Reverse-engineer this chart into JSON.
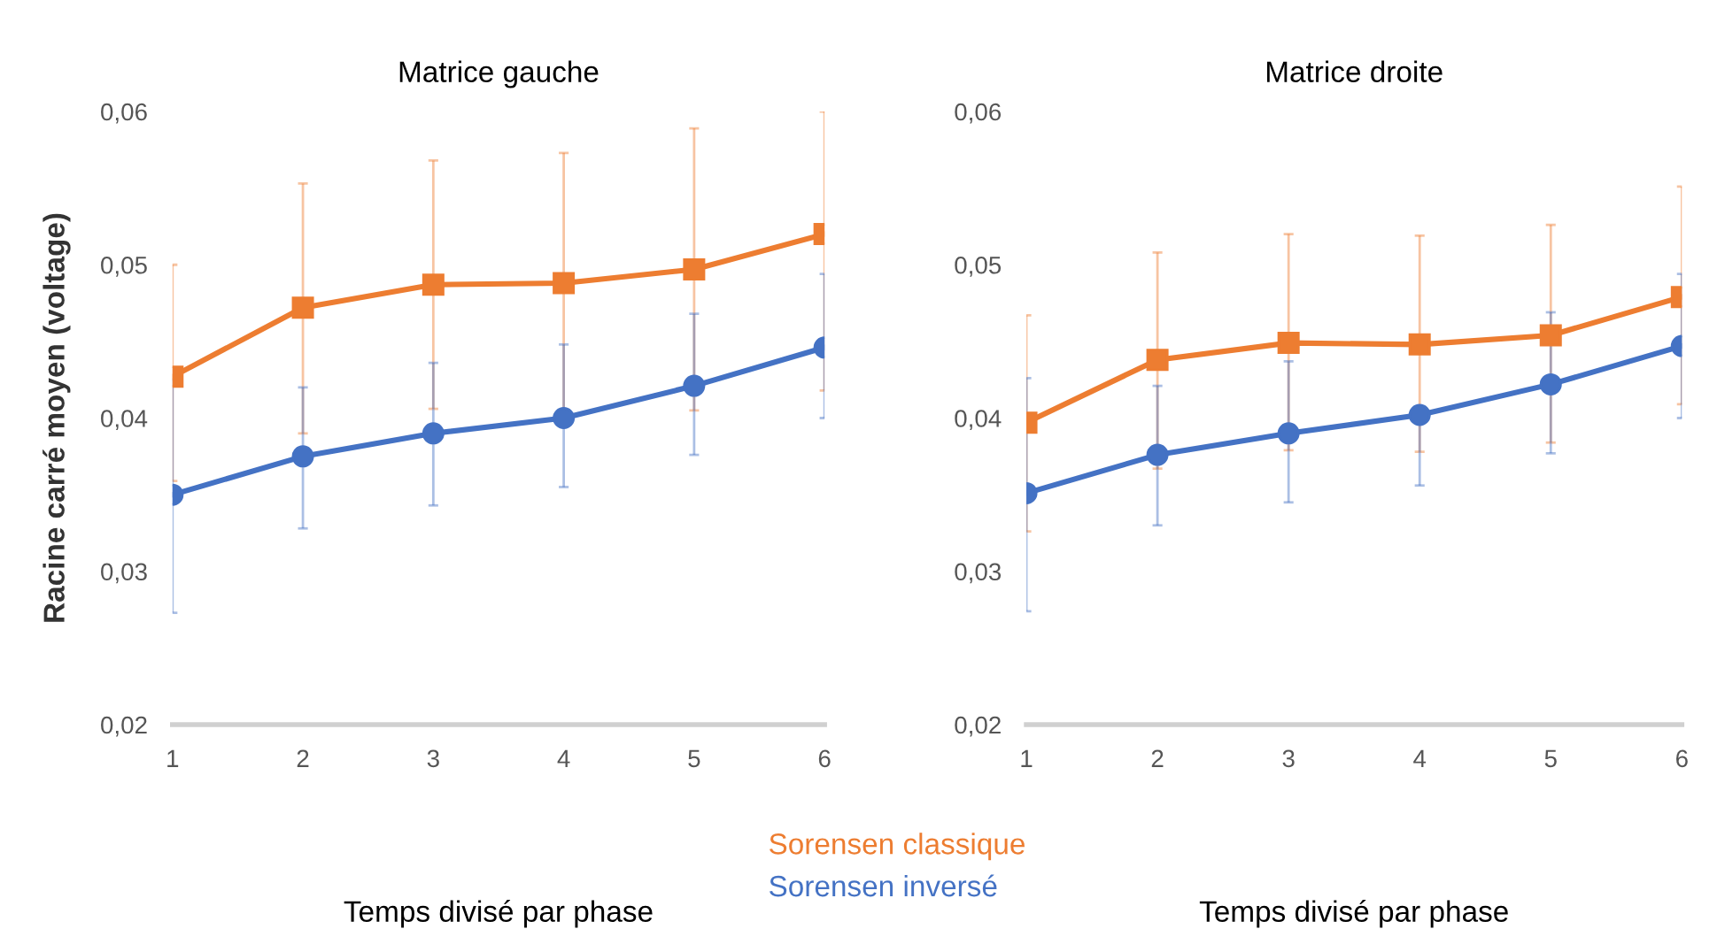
{
  "chart_data": [
    {
      "type": "line",
      "title": "Matrice gauche",
      "xlabel": "Temps divisé par phase",
      "ylabel": "Racine carré moyen (voltage)",
      "x": [
        1,
        2,
        3,
        4,
        5,
        6
      ],
      "xlim": [
        1,
        6
      ],
      "xticks": [
        1,
        2,
        3,
        4,
        5,
        6
      ],
      "ylim": [
        0.02,
        0.06
      ],
      "yticks": [
        {
          "value": 0.02,
          "label": "0,02"
        },
        {
          "value": 0.03,
          "label": "0,03"
        },
        {
          "value": 0.04,
          "label": "0,04"
        },
        {
          "value": 0.05,
          "label": "0,05"
        },
        {
          "value": 0.06,
          "label": "0,06"
        }
      ],
      "grid": false,
      "legend": "bottom",
      "series": [
        {
          "name": "Sorensen classique",
          "color": "#ed7d31",
          "marker": "square",
          "values": [
            0.0427,
            0.0472,
            0.0487,
            0.0488,
            0.0497,
            0.052
          ],
          "errors": [
            [
              0.0359,
              0.05
            ],
            [
              0.039,
              0.0553
            ],
            [
              0.0406,
              0.0568
            ],
            [
              0.0403,
              0.0573
            ],
            [
              0.0405,
              0.0589
            ],
            [
              0.0418,
              0.06
            ]
          ]
        },
        {
          "name": "Sorensen inversé",
          "color": "#4472c4",
          "marker": "circle",
          "values": [
            0.035,
            0.0375,
            0.039,
            0.04,
            0.0421,
            0.0446
          ],
          "errors": [
            [
              0.0273,
              0.0425
            ],
            [
              0.0328,
              0.042
            ],
            [
              0.0343,
              0.0436
            ],
            [
              0.0355,
              0.0448
            ],
            [
              0.0376,
              0.0468
            ],
            [
              0.04,
              0.0494
            ]
          ]
        }
      ]
    },
    {
      "type": "line",
      "title": "Matrice droite",
      "xlabel": "Temps divisé par phase",
      "x": [
        1,
        2,
        3,
        4,
        5,
        6
      ],
      "xlim": [
        1,
        6
      ],
      "xticks": [
        1,
        2,
        3,
        4,
        5,
        6
      ],
      "ylim": [
        0.02,
        0.06
      ],
      "yticks": [
        {
          "value": 0.02,
          "label": "0,02"
        },
        {
          "value": 0.03,
          "label": "0,03"
        },
        {
          "value": 0.04,
          "label": "0,04"
        },
        {
          "value": 0.05,
          "label": "0,05"
        },
        {
          "value": 0.06,
          "label": "0,06"
        }
      ],
      "grid": false,
      "series": [
        {
          "color": "#ed7d31",
          "marker": "square",
          "values": [
            0.0397,
            0.0438,
            0.0449,
            0.0448,
            0.0454,
            0.0479
          ],
          "errors": [
            [
              0.0326,
              0.0467
            ],
            [
              0.0367,
              0.0508
            ],
            [
              0.0379,
              0.052
            ],
            [
              0.0378,
              0.0519
            ],
            [
              0.0384,
              0.0526
            ],
            [
              0.0409,
              0.0551
            ]
          ]
        },
        {
          "color": "#4472c4",
          "marker": "circle",
          "values": [
            0.0351,
            0.0376,
            0.039,
            0.0402,
            0.0422,
            0.0447
          ],
          "errors": [
            [
              0.0274,
              0.0426
            ],
            [
              0.033,
              0.0421
            ],
            [
              0.0345,
              0.0437
            ],
            [
              0.0356,
              0.0402
            ],
            [
              0.0377,
              0.0469
            ],
            [
              0.04,
              0.0494
            ]
          ]
        }
      ]
    }
  ]
}
